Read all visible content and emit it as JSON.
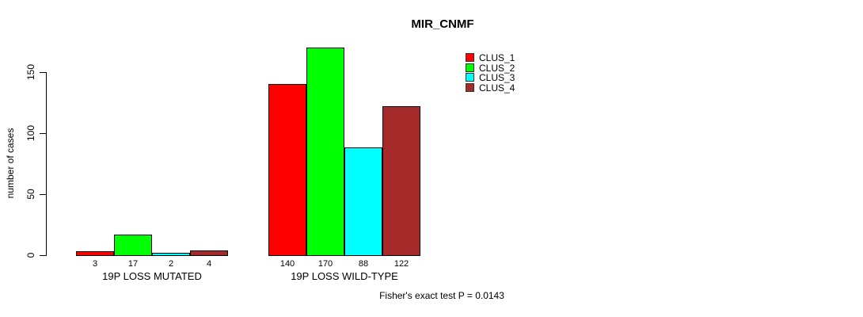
{
  "chart_data": {
    "type": "bar",
    "title": "MIR_CNMF",
    "ylabel": "number of cases",
    "xlabel": "",
    "ylim": [
      0,
      170
    ],
    "yticks": [
      0,
      50,
      100,
      150
    ],
    "categories": [
      "19P LOSS MUTATED",
      "19P LOSS WILD-TYPE"
    ],
    "series": [
      {
        "name": "CLUS_1",
        "color": "#FF0000",
        "values": [
          3,
          140
        ]
      },
      {
        "name": "CLUS_2",
        "color": "#00FF00",
        "values": [
          17,
          170
        ]
      },
      {
        "name": "CLUS_3",
        "color": "#00FFFF",
        "values": [
          2,
          88
        ]
      },
      {
        "name": "CLUS_4",
        "color": "#A52A2A",
        "values": [
          4,
          122
        ]
      }
    ],
    "bar_value_labels": {
      "19P LOSS MUTATED": [
        3,
        17,
        2,
        4
      ],
      "19P LOSS WILD-TYPE": [
        140,
        170,
        88,
        122
      ]
    },
    "bar_edge_color": "#000000",
    "legend_position": "top-right",
    "grid": false,
    "annotation": "Fisher's exact test P = 0.0143"
  }
}
